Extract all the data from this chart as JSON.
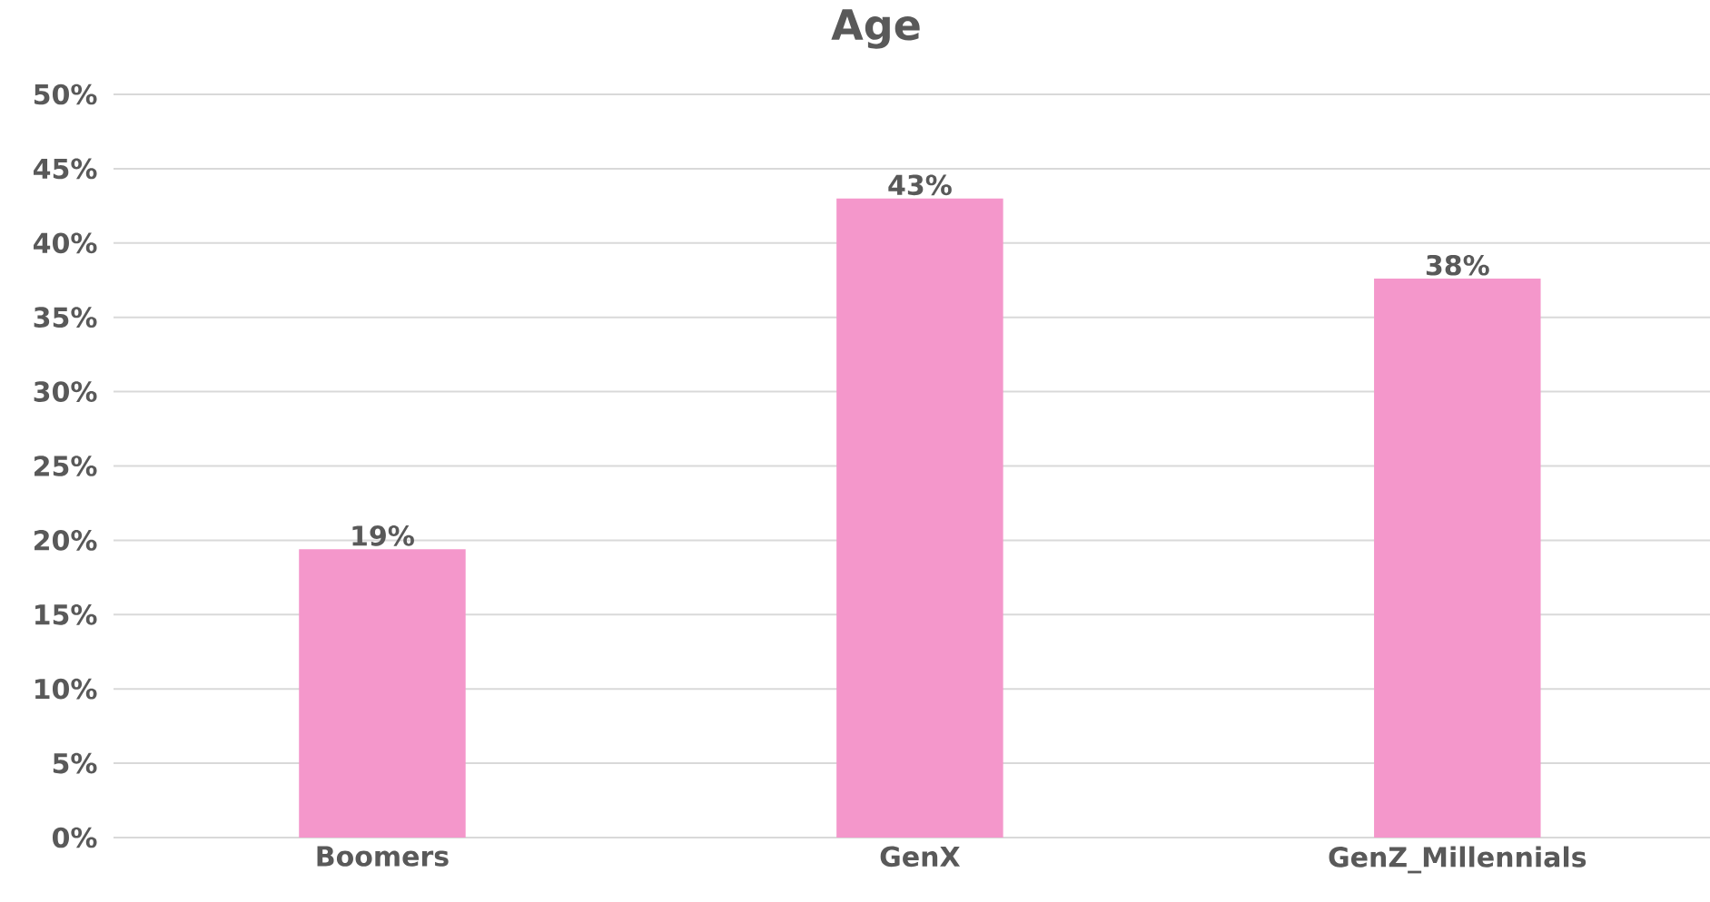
{
  "chart_data": {
    "type": "bar",
    "title": "Age",
    "categories": [
      "Boomers",
      "GenX",
      "GenZ_Millennials"
    ],
    "values": [
      19.4,
      43,
      37.6
    ],
    "value_labels": [
      "19%",
      "43%",
      "38%"
    ],
    "color": "#f497cb",
    "ylim": [
      0,
      50
    ],
    "yticks": [
      {
        "value": 0,
        "label": "0%"
      },
      {
        "value": 5,
        "label": "5%"
      },
      {
        "value": 10,
        "label": "10%"
      },
      {
        "value": 15,
        "label": "15%"
      },
      {
        "value": 20,
        "label": "20%"
      },
      {
        "value": 25,
        "label": "25%"
      },
      {
        "value": 30,
        "label": "30%"
      },
      {
        "value": 35,
        "label": "35%"
      },
      {
        "value": 40,
        "label": "40%"
      },
      {
        "value": 45,
        "label": "45%"
      },
      {
        "value": 50,
        "label": "50%"
      }
    ],
    "grid": "y"
  }
}
